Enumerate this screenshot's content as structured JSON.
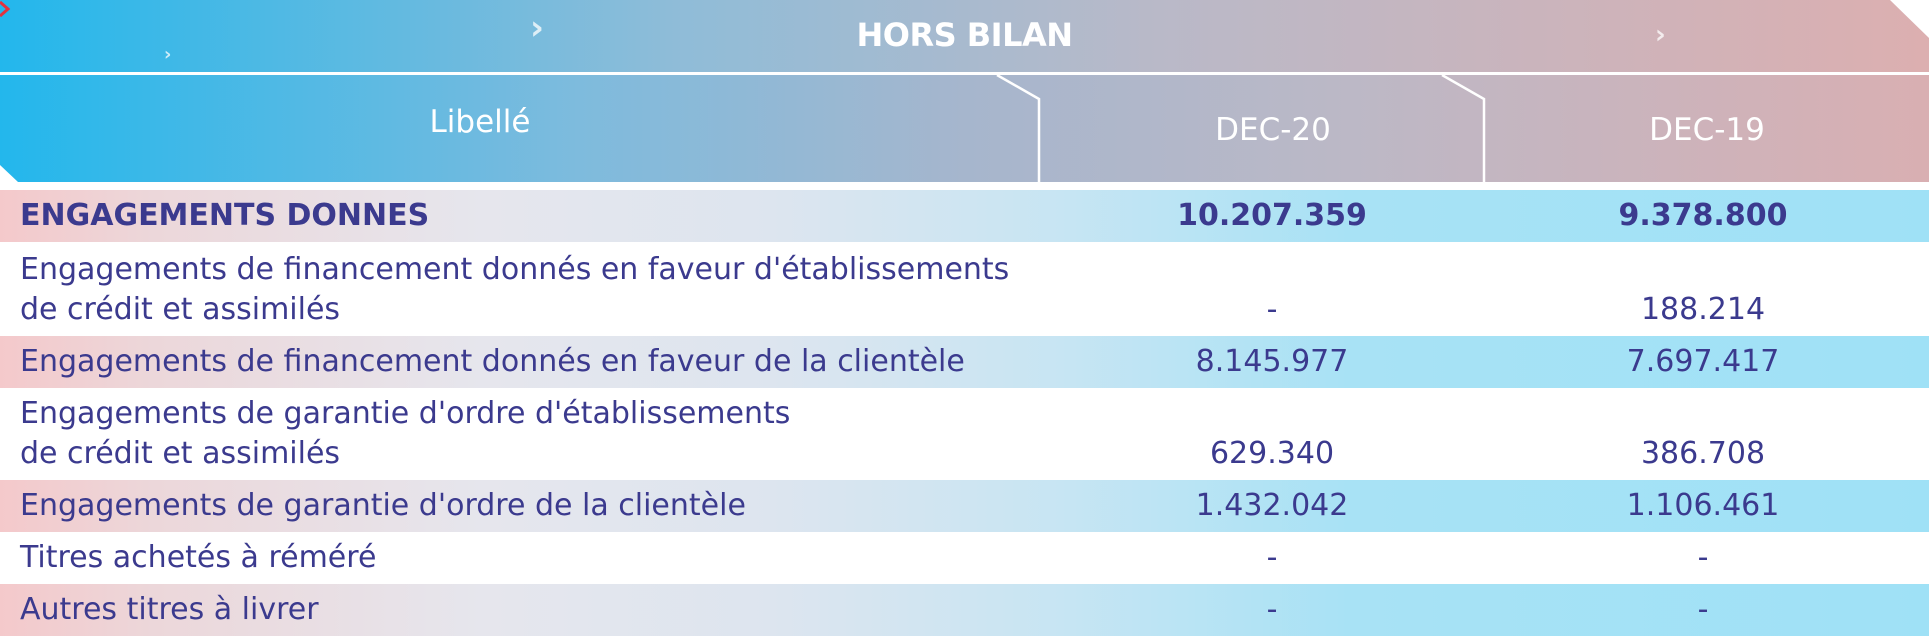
{
  "title": "HORS BILAN",
  "columns": {
    "label": "Libellé",
    "col1": "DEC-20",
    "col2": "DEC-19"
  },
  "rows": [
    {
      "label_lines": [
        "ENGAGEMENTS DONNES"
      ],
      "dec20": "10.207.359",
      "dec19": "9.378.800",
      "bold": true
    },
    {
      "label_lines": [
        "Engagements de financement donnés en faveur d'établissements",
        "de crédit et assimilés"
      ],
      "dec20": "-",
      "dec19": "188.214"
    },
    {
      "label_lines": [
        "Engagements de financement donnés en faveur de la clientèle"
      ],
      "dec20": "8.145.977",
      "dec19": "7.697.417"
    },
    {
      "label_lines": [
        "Engagements de garantie d'ordre d'établissements",
        "de crédit et assimilés"
      ],
      "dec20": "629.340",
      "dec19": "386.708"
    },
    {
      "label_lines": [
        "Engagements de garantie d'ordre de la clientèle"
      ],
      "dec20": "1.432.042",
      "dec19": "1.106.461"
    },
    {
      "label_lines": [
        "Titres achetés à réméré"
      ],
      "dec20": "-",
      "dec19": "-"
    },
    {
      "label_lines": [
        "Autres titres à livrer"
      ],
      "dec20": "-",
      "dec19": "-"
    }
  ],
  "colors": {
    "accent_text": "#3b3a8e",
    "header_start": "#23b7ec",
    "header_end": "#dcafb0"
  },
  "icons": [
    "chevron-right-icon"
  ]
}
